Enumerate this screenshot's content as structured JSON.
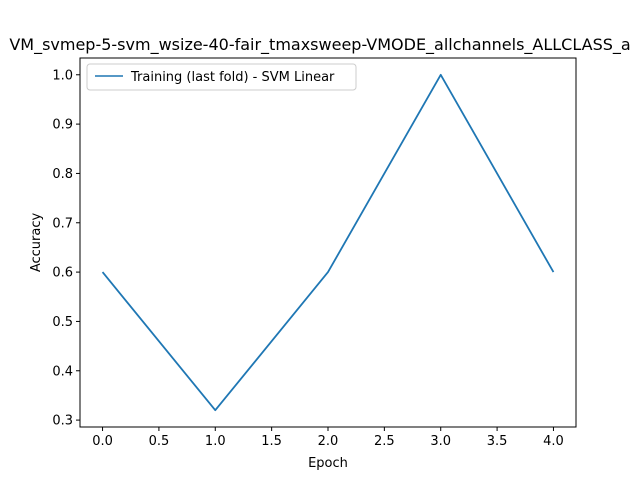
{
  "chart_data": {
    "type": "line",
    "title": "VM_svmep-5-svm_wsize-40-fair_tmaxsweep-VMODE_allchannels_ALLCLASS_a",
    "xlabel": "Epoch",
    "ylabel": "Accuracy",
    "xlim": [
      -0.2,
      4.2
    ],
    "ylim": [
      0.286,
      1.034
    ],
    "x_ticks": [
      "0.0",
      "0.5",
      "1.0",
      "1.5",
      "2.0",
      "2.5",
      "3.0",
      "3.5",
      "4.0"
    ],
    "y_ticks": [
      "0.3",
      "0.4",
      "0.5",
      "0.6",
      "0.7",
      "0.8",
      "0.9",
      "1.0"
    ],
    "grid": false,
    "legend_position": "top-left",
    "series": [
      {
        "name": "Training (last fold) - SVM Linear",
        "color": "#1f77b4",
        "x": [
          0,
          1,
          2,
          3,
          4
        ],
        "y": [
          0.6,
          0.32,
          0.6,
          1.0,
          0.6
        ]
      }
    ]
  }
}
